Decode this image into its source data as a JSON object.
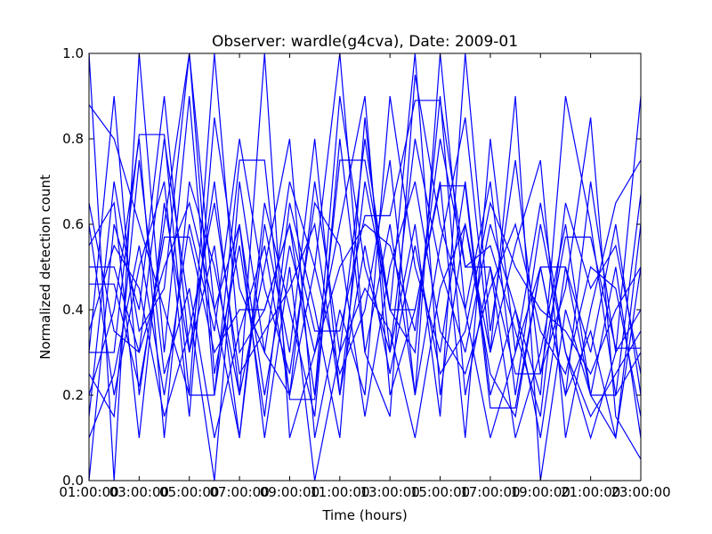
{
  "chart_data": {
    "type": "line",
    "title": "Observer: wardle(g4cva), Date: 2009-01",
    "xlabel": "Time (hours)",
    "ylabel": "Normalized detection count",
    "x": [
      "01:00:00",
      "02:00:00",
      "03:00:00",
      "04:00:00",
      "05:00:00",
      "06:00:00",
      "07:00:00",
      "08:00:00",
      "09:00:00",
      "10:00:00",
      "11:00:00",
      "12:00:00",
      "13:00:00",
      "14:00:00",
      "15:00:00",
      "16:00:00",
      "17:00:00",
      "18:00:00",
      "19:00:00",
      "20:00:00",
      "21:00:00",
      "22:00:00",
      "23:00:00"
    ],
    "xticks": [
      "01:00:00",
      "03:00:00",
      "05:00:00",
      "07:00:00",
      "09:00:00",
      "11:00:00",
      "13:00:00",
      "15:00:00",
      "17:00:00",
      "19:00:00",
      "21:00:00",
      "23:00:00"
    ],
    "yticks": [
      "0.0",
      "0.2",
      "0.4",
      "0.6",
      "0.8",
      "1.0"
    ],
    "ylim": [
      0,
      1
    ],
    "grid": false,
    "legend": "none",
    "line_color": "#0000ff",
    "series": [
      {
        "values": [
          1.0,
          0.0,
          1.0,
          0.3,
          0.9,
          0.2,
          0.6,
          0.1,
          0.5,
          0.0,
          0.3,
          0.8,
          0.4,
          1.0,
          0.2,
          0.6,
          0.3,
          0.9,
          0.0,
          0.4,
          0.2,
          0.5,
          0.1
        ]
      },
      {
        "values": [
          0.5,
          0.5,
          0.3,
          0.8,
          0.4,
          0.0,
          0.7,
          0.3,
          0.2,
          0.5,
          1.0,
          0.3,
          0.6,
          0.2,
          1.0,
          0.4,
          0.7,
          0.2,
          0.6,
          0.3,
          0.1,
          0.3,
          0.4
        ]
      },
      {
        "values": [
          0.3,
          0.9,
          0.2,
          0.6,
          1.0,
          0.4,
          0.1,
          0.6,
          0.3,
          0.8,
          0.2,
          0.7,
          0.4,
          0.3,
          0.9,
          0.2,
          0.5,
          0.1,
          0.3,
          0.6,
          0.2,
          0.1,
          0.5
        ]
      },
      {
        "values": [
          0.88,
          0.8,
          0.6,
          0.4,
          0.2,
          1.0,
          0.3,
          0.4,
          0.6,
          0.2,
          0.9,
          0.5,
          0.3,
          0.8,
          0.5,
          0.3,
          0.6,
          0.4,
          0.2,
          0.9,
          0.6,
          0.2,
          0.3
        ]
      },
      {
        "values": [
          0.2,
          0.4,
          0.8,
          0.1,
          0.7,
          0.5,
          0.2,
          1.0,
          0.1,
          0.3,
          0.6,
          0.9,
          0.2,
          0.4,
          0.7,
          0.1,
          0.8,
          0.3,
          0.5,
          0.2,
          0.7,
          0.3,
          0.9
        ]
      },
      {
        "values": [
          0.0,
          0.6,
          0.4,
          0.9,
          0.3,
          0.7,
          0.2,
          0.5,
          0.8,
          0.1,
          0.4,
          0.2,
          0.9,
          0.5,
          0.3,
          0.7,
          0.2,
          0.4,
          0.1,
          0.5,
          0.3,
          0.6,
          0.2
        ]
      },
      {
        "values": [
          0.46,
          0.46,
          0.22,
          0.57,
          0.57,
          0.3,
          0.4,
          0.4,
          0.6,
          0.35,
          0.35,
          0.62,
          0.62,
          0.89,
          0.89,
          0.5,
          0.5,
          0.25,
          0.25,
          0.57,
          0.57,
          0.31,
          0.31
        ]
      },
      {
        "values": [
          0.3,
          0.3,
          0.81,
          0.81,
          0.2,
          0.2,
          0.75,
          0.75,
          0.19,
          0.19,
          0.75,
          0.75,
          0.4,
          0.4,
          0.69,
          0.69,
          0.17,
          0.17,
          0.5,
          0.5,
          0.2,
          0.2,
          0.67
        ]
      },
      {
        "values": [
          0.15,
          0.7,
          0.35,
          0.45,
          1.0,
          0.25,
          0.55,
          0.15,
          0.65,
          0.4,
          0.1,
          0.85,
          0.3,
          0.6,
          0.15,
          1.0,
          0.35,
          0.75,
          0.25,
          0.45,
          0.85,
          0.15,
          0.05
        ]
      },
      {
        "values": [
          0.6,
          0.2,
          0.5,
          0.7,
          0.15,
          0.85,
          0.45,
          0.3,
          0.7,
          0.5,
          0.25,
          0.4,
          0.75,
          0.2,
          0.55,
          0.85,
          0.3,
          0.55,
          0.75,
          0.1,
          0.4,
          0.65,
          0.75
        ]
      },
      {
        "values": [
          0.1,
          0.25,
          0.55,
          0.2,
          0.6,
          0.35,
          0.8,
          0.45,
          0.25,
          0.65,
          0.55,
          0.15,
          0.5,
          0.7,
          0.35,
          0.25,
          0.45,
          0.6,
          0.35,
          0.25,
          0.5,
          0.45,
          0.15
        ]
      },
      {
        "values": [
          0.55,
          0.65,
          0.1,
          0.65,
          0.3,
          0.55,
          0.1,
          0.65,
          0.4,
          0.15,
          0.8,
          0.3,
          0.15,
          0.95,
          0.6,
          0.4,
          0.1,
          0.3,
          0.65,
          0.3,
          0.15,
          0.25,
          0.35
        ]
      },
      {
        "values": [
          0.25,
          0.15,
          0.75,
          0.25,
          0.45,
          0.1,
          0.35,
          0.55,
          0.2,
          0.7,
          0.3,
          0.45,
          0.35,
          0.1,
          0.45,
          0.6,
          0.25,
          0.15,
          0.5,
          0.2,
          0.35,
          0.1,
          0.6
        ]
      },
      {
        "values": [
          0.65,
          0.35,
          0.3,
          0.5,
          0.65,
          0.4,
          0.6,
          0.2,
          0.55,
          0.3,
          0.5,
          0.6,
          0.55,
          0.35,
          0.8,
          0.5,
          0.55,
          0.35,
          0.15,
          0.65,
          0.45,
          0.55,
          0.25
        ]
      },
      {
        "values": [
          0.35,
          0.55,
          0.45,
          0.15,
          0.35,
          0.65,
          0.25,
          0.35,
          0.45,
          0.6,
          0.2,
          0.55,
          0.25,
          0.55,
          0.25,
          0.35,
          0.65,
          0.5,
          0.4,
          0.35,
          0.25,
          0.4,
          0.5
        ]
      }
    ]
  }
}
